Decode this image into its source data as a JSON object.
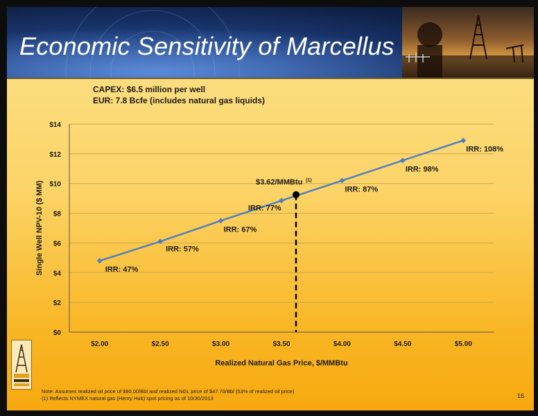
{
  "slide": {
    "title": "Economic Sensitivity of Marcellus",
    "caption_line1": "CAPEX: $6.5 million per well",
    "caption_line2": "EUR: 7.8 Bcfe (includes natural gas liquids)",
    "note_line1": "Note: Assumes realized oil price of $90.00/Bbl and realized NGL price of $47.70/Bbl (53% of realized oil price)",
    "note_line2": "(1) Reflects NYMEX natural gas (Henry Hub) spot pricing as of 10/30/2013",
    "page_number": "16"
  },
  "chart_data": {
    "type": "line",
    "xlabel": "Realized Natural Gas Price, $/MMBtu",
    "ylabel": "Single Well NPV-10 ($ MM)",
    "xlim": [
      1.75,
      5.25
    ],
    "ylim": [
      0,
      14
    ],
    "x_ticks": [
      2.0,
      2.5,
      3.0,
      3.5,
      4.0,
      4.5,
      5.0
    ],
    "x_tick_labels": [
      "$2.00",
      "$2.50",
      "$3.00",
      "$3.50",
      "$4.00",
      "$4.50",
      "$5.00"
    ],
    "y_ticks": [
      0,
      2,
      4,
      6,
      8,
      10,
      12,
      14
    ],
    "y_tick_labels": [
      "$0",
      "$2",
      "$4",
      "$6",
      "$8",
      "$10",
      "$12",
      "$14"
    ],
    "grid": "horizontal",
    "series": [
      {
        "color": "#4f7fc0",
        "x": [
          2.0,
          2.5,
          3.0,
          3.5,
          4.0,
          4.5,
          5.0
        ],
        "y": [
          4.8,
          6.1,
          7.5,
          8.85,
          10.2,
          11.55,
          12.9
        ],
        "labels": [
          "IRR: 47%",
          "IRR: 57%",
          "IRR: 67%",
          "IRR: 77%",
          "IRR: 87%",
          "IRR: 98%",
          "IRR: 108%"
        ]
      }
    ],
    "highlight": {
      "x": 3.62,
      "y": 9.25,
      "label": "$3.62/MMBtu",
      "label_sup": "(1)",
      "color": "#000000"
    }
  }
}
